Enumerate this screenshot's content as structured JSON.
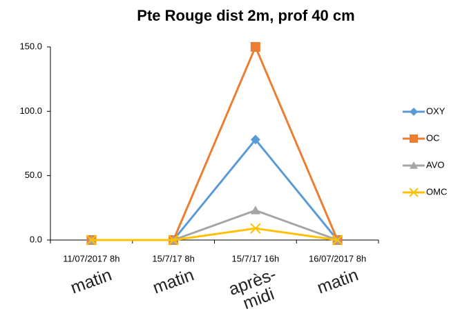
{
  "chart_data": {
    "type": "line",
    "title": "Pte Rouge dist 2m, prof 40 cm",
    "categories": [
      "11/07/2017 8h",
      "15/7/17 8h",
      "15/7/17 16h",
      "16/07/2017 8h"
    ],
    "category_notes": [
      "matin",
      "matin",
      "après-midi",
      "matin"
    ],
    "series": [
      {
        "name": "OXY",
        "color": "#5b9bd5",
        "marker": "diamond",
        "values": [
          0,
          0,
          78,
          0
        ]
      },
      {
        "name": "OC",
        "color": "#ed7d31",
        "marker": "square",
        "values": [
          0,
          0,
          150,
          0
        ]
      },
      {
        "name": "AVO",
        "color": "#a5a5a5",
        "marker": "triangle",
        "values": [
          0,
          0,
          23,
          0
        ]
      },
      {
        "name": "OMC",
        "color": "#ffc000",
        "marker": "x",
        "values": [
          0,
          0,
          9,
          0
        ]
      }
    ],
    "ylim": [
      0,
      150
    ],
    "yticks": [
      {
        "value": 0,
        "label": "0.0"
      },
      {
        "value": 50,
        "label": "50.0"
      },
      {
        "value": 100,
        "label": "100.0"
      },
      {
        "value": 150,
        "label": "150.0"
      }
    ],
    "grid": false,
    "legend": "right"
  }
}
